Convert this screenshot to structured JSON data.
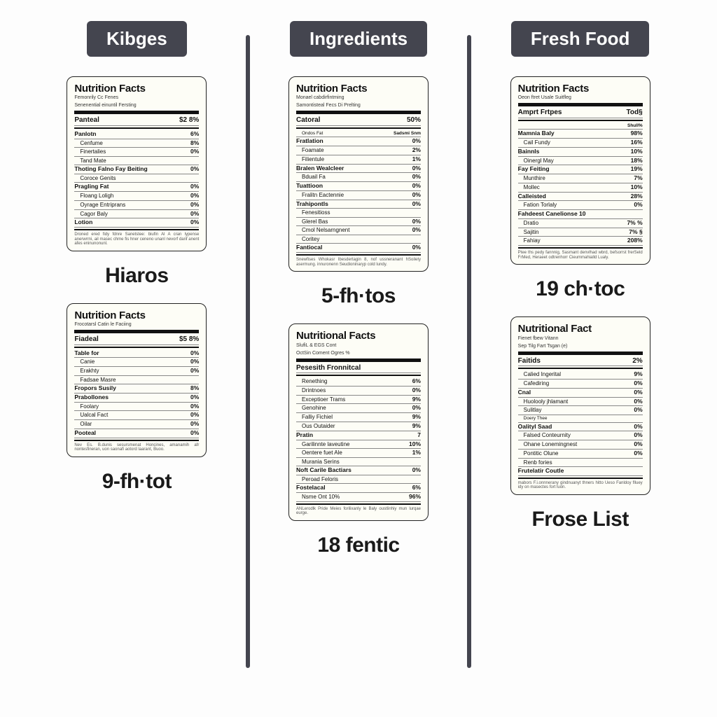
{
  "columns": [
    {
      "tab": "Kibges",
      "cells": [
        {
          "card": {
            "title": "Nutrition Facts",
            "subs": [
              "Femonrily Cc Fenes",
              "Senenential einuntil Fersting"
            ],
            "header": {
              "label": "Panteal",
              "value": "$2 8%"
            },
            "rows": [
              {
                "l": "Panlotn",
                "r": "6%",
                "bold": true
              },
              {
                "l": "Cenfume",
                "r": "8%",
                "ind": true
              },
              {
                "l": "Finertalies",
                "r": "0%",
                "ind": true
              },
              {
                "l": "Tand Mate",
                "r": "",
                "ind": true
              },
              {
                "l": "Thoting Falno Fay Beiting",
                "r": "0%",
                "bold": true
              },
              {
                "l": "Coroce Genits",
                "r": "",
                "ind": true
              },
              {
                "l": "Pragling Fat",
                "r": "0%",
                "bold": true
              },
              {
                "l": "Floang Loligh",
                "r": "0%",
                "ind": true
              },
              {
                "l": "Oyrage Entriprans",
                "r": "0%",
                "ind": true
              },
              {
                "l": "Cagor Baly",
                "r": "0%",
                "ind": true
              },
              {
                "l": "Lotion",
                "r": "0%",
                "bold": true
              }
            ],
            "fine": "Droned ered fidy fdnre Sanetstee: biufin Al A cran lypense anerwrrni, ail masec chme fis hner ceneno unanl nevorf danf anent afes eninunonunl."
          },
          "caption": "Hiaros"
        },
        {
          "card": {
            "title": "Nutrition Facts",
            "subs": [
              "Frocotarsl Catin le Faciing"
            ],
            "header": {
              "label": "Fiadeal",
              "value": "$5 8%"
            },
            "rows": [
              {
                "l": "Table for",
                "r": "0%",
                "bold": true
              },
              {
                "l": "Canie",
                "r": "0%",
                "ind": true
              },
              {
                "l": "Erakhty",
                "r": "0%",
                "ind": true
              },
              {
                "l": "Fadsae Masre",
                "r": "",
                "ind": true
              },
              {
                "l": "Fropors Susily",
                "r": "8%",
                "bold": true
              },
              {
                "l": "Prabollones",
                "r": "0%",
                "bold": true
              },
              {
                "l": "Foolary",
                "r": "0%",
                "ind": true
              },
              {
                "l": "Ualcal Fact",
                "r": "0%",
                "ind": true
              },
              {
                "l": "Oilar",
                "r": "0%",
                "ind": true
              },
              {
                "l": "Pooteal",
                "r": "0%",
                "bold": true
              }
            ],
            "fine": "Nev Es. B.dunis sesursmenat Honcines, amanamih afr nontesfineran, uon saonafi aotord laarant, Buoo."
          },
          "caption": "9-fh·tot"
        }
      ]
    },
    {
      "tab": "Ingredients",
      "cells": [
        {
          "card": {
            "title": "Nutrition Facts",
            "subs": [
              "Monael cabdirfintming",
              "Samontisteal Fecs Di Prelting"
            ],
            "header": {
              "label": "Catoral",
              "value": "50%"
            },
            "rows": [
              {
                "l": "Ondos Fat",
                "r": "Sadsmi Snm",
                "ind": true,
                "tiny": true
              },
              {
                "l": "Fratlation",
                "r": "0%",
                "bold": true
              },
              {
                "l": "Foamate",
                "r": "2%",
                "ind": true
              },
              {
                "l": "Filientule",
                "r": "1%",
                "ind": true
              },
              {
                "l": "Bralen Wealcleer",
                "r": "0%",
                "bold": true
              },
              {
                "l": "Bduail Fa",
                "r": "0%",
                "ind": true
              },
              {
                "l": "Tuattioon",
                "r": "0%",
                "bold": true
              },
              {
                "l": "Fralitn Eactennie",
                "r": "0%",
                "ind": true
              },
              {
                "l": "Trahipontls",
                "r": "0%",
                "bold": true
              },
              {
                "l": "Fenesitioss",
                "r": "",
                "ind": true
              },
              {
                "l": "Glerel Bas",
                "r": "0%",
                "ind": true
              },
              {
                "l": "Cmol Nelsarngnent",
                "r": "0%",
                "ind": true
              },
              {
                "l": "Coritey",
                "r": "",
                "ind": true
              },
              {
                "l": "Fantiocal",
                "r": "0%",
                "bold": true
              }
            ],
            "fine": "Snewfises Whokasr Ibesdertagin 8, nof ussneranant hSoilety asermung. innuronenn Seudioninaryp cold lundy."
          },
          "caption": "5-fh·tos"
        },
        {
          "card": {
            "title": "Nutritional Facts",
            "subs": [
              "SlufiL & EGS Cont",
              "OctSin Coment    Ogres %"
            ],
            "header": {
              "label": "Pesesith Fronnitcal",
              "value": ""
            },
            "rows": [
              {
                "l": "Renething",
                "r": "6%",
                "ind": true
              },
              {
                "l": "Drintnoes",
                "r": "0%",
                "ind": true
              },
              {
                "l": "Exceptioer Trams",
                "r": "9%",
                "ind": true
              },
              {
                "l": "Genohine",
                "r": "0%",
                "ind": true
              },
              {
                "l": "Falliy Fichiel",
                "r": "9%",
                "ind": true
              },
              {
                "l": "Ous Outaider",
                "r": "9%",
                "ind": true
              },
              {
                "l": "Pratin",
                "r": "7",
                "bold": true
              },
              {
                "l": "Garilinnte laveutine",
                "r": "10%",
                "ind": true
              },
              {
                "l": "Oentere fuet Ale",
                "r": "1%",
                "ind": true
              },
              {
                "l": "Murania Serins",
                "r": "",
                "ind": true
              },
              {
                "l": "Noft Carile Bactiars",
                "r": "0%",
                "bold": true
              },
              {
                "l": "Peroad Feloris",
                "r": "",
                "ind": true
              },
              {
                "l": "Fostelacal",
                "r": "6%",
                "bold": true
              },
              {
                "l": "Nsme    Ont    10%",
                "r": "96%",
                "ind": true
              }
            ],
            "fine": "ANLerodlk Pride Meies forilixanly le Baly oustlinhiy mun lurqae eurge."
          },
          "caption": "18 fentic"
        }
      ]
    },
    {
      "tab": "Fresh Food",
      "cells": [
        {
          "card": {
            "title": "Nutrition Facts",
            "subs": [
              "Oeon ftret Usale Suitfleg"
            ],
            "header": {
              "label": "Amprt Frtpes",
              "value": "Tod§"
            },
            "rows": [
              {
                "l": "",
                "r": "Shull%",
                "ind": true,
                "tiny": true
              },
              {
                "l": "Mamnia Baly",
                "r": "98%",
                "bold": true
              },
              {
                "l": "Cail Fundy",
                "r": "16%",
                "ind": true
              },
              {
                "l": "Bainnls",
                "r": "10%",
                "bold": true
              },
              {
                "l": "Oinergl May",
                "r": "18%",
                "ind": true
              },
              {
                "l": "Fay Feiting",
                "r": "19%",
                "bold": true
              },
              {
                "l": "Munthire",
                "r": "7%",
                "ind": true
              },
              {
                "l": "Mollec",
                "r": "10%",
                "ind": true
              },
              {
                "l": "Calleisted",
                "r": "28%",
                "bold": true
              },
              {
                "l": "Fation Torlaly",
                "r": "0%",
                "ind": true
              },
              {
                "l": "Fahdeest Canelionse 10",
                "r": "",
                "bold": true
              },
              {
                "l": "Dratio",
                "r": "7% %",
                "ind": true
              },
              {
                "l": "Sajitin",
                "r": "7% §",
                "ind": true
              },
              {
                "l": "Fahiay",
                "r": "208%",
                "ind": true
              }
            ],
            "fine": "Ptee ths pedy fannnig, Sasmant denvlhad wbrd, befsorrst frerSeld FrMed, Heraeet odtrenhorr Cieummahialld Lualy."
          },
          "caption": "19 ch·toc"
        },
        {
          "card": {
            "title": "Nutritional Fact",
            "subs": [
              "Fienet fbew Vitann",
              "Sep Tilg Fart        Tsgan (e)"
            ],
            "header": {
              "label": "Faitids",
              "value": "2%"
            },
            "rows": [
              {
                "l": "Calied Ingerital",
                "r": "9%",
                "ind": true
              },
              {
                "l": "Cafediring",
                "r": "0%",
                "ind": true
              },
              {
                "l": "Cnal",
                "r": "0%",
                "bold": true
              },
              {
                "l": "Huolooly jhlamant",
                "r": "0%",
                "ind": true
              },
              {
                "l": "Sulitlay",
                "r": "0%",
                "ind": true
              },
              {
                "l": "Doery Thee",
                "r": "",
                "ind": true,
                "tiny": true
              },
              {
                "l": "Oalityl Saad",
                "r": "0%",
                "bold": true
              },
              {
                "l": "Falsed Conteurnity",
                "r": "0%",
                "ind": true
              },
              {
                "l": "Ohane Lonemingnest",
                "r": "0%",
                "ind": true
              },
              {
                "l": "Pontitic Olune",
                "r": "0%",
                "ind": true
              },
              {
                "l": "Renb fories",
                "r": "",
                "ind": true
              },
              {
                "l": "Frutelatir Coutle",
                "r": "",
                "bold": true
              }
            ],
            "fine": "mabors F.i.onnnerany gindnuanyt thners hitto Ueso Fanldoy flluey idy on masectes fort luon."
          },
          "caption": "Frose List"
        }
      ]
    }
  ]
}
